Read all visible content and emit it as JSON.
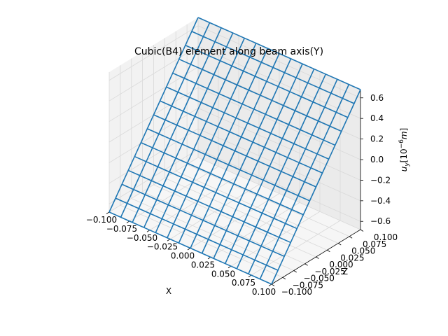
{
  "chart_data": {
    "type": "wireframe-3d",
    "title": "Cubic(B4) element along beam axis(Y)",
    "xlabel": "X",
    "ylabel": "Z",
    "zlabel": "u_y[10^{-6}m]",
    "xlim": [
      -0.1,
      0.1
    ],
    "ylim": [
      -0.1,
      0.1
    ],
    "zlim": [
      -0.68,
      0.68
    ],
    "xticks": [
      "−0.100",
      "−0.075",
      "−0.050",
      "−0.025",
      "0.000",
      "0.025",
      "0.050",
      "0.075",
      "0.100"
    ],
    "yticks": [
      "−0.100",
      "−0.075",
      "−0.050",
      "−0.025",
      "0.000",
      "0.025",
      "0.050",
      "0.075",
      "0.100"
    ],
    "zticks": [
      "−0.6",
      "−0.4",
      "−0.2",
      "0.0",
      "0.2",
      "0.4",
      "0.6"
    ],
    "grid": true,
    "line_color": "#1f77b4",
    "series": [
      {
        "description": "u_y varies linearly with Z, constant along X",
        "x_range": [
          -0.1,
          0.1
        ],
        "z_range": [
          -0.1,
          0.1
        ],
        "x_samples": 15,
        "z_samples": 15,
        "u_at_z_min": -0.68,
        "u_at_z_max": 0.68
      }
    ]
  }
}
